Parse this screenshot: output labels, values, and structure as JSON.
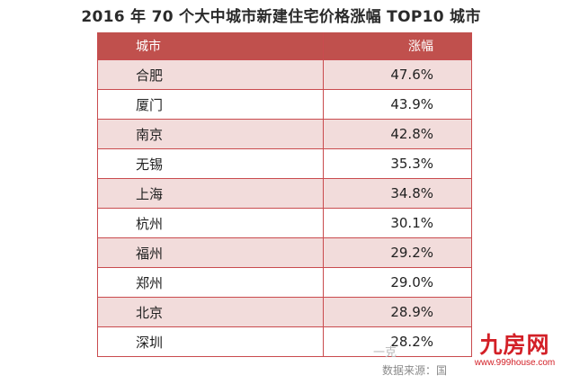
{
  "title": "2016 年 70 个大中城市新建住宅价格涨幅 TOP10 城市",
  "table": {
    "headers": [
      "城市",
      "涨幅"
    ],
    "rows": [
      [
        "合肥",
        "47.6%"
      ],
      [
        "厦门",
        "43.9%"
      ],
      [
        "南京",
        "42.8%"
      ],
      [
        "无锡",
        "35.3%"
      ],
      [
        "上海",
        "34.8%"
      ],
      [
        "杭州",
        "30.1%"
      ],
      [
        "福州",
        "29.2%"
      ],
      [
        "郑州",
        "29.0%"
      ],
      [
        "北京",
        "28.9%"
      ],
      [
        "深圳",
        "28.2%"
      ]
    ]
  },
  "chart_data": {
    "type": "table",
    "title": "2016 年 70 个大中城市新建住宅价格涨幅 TOP10 城市",
    "columns": [
      "城市",
      "涨幅"
    ],
    "categories": [
      "合肥",
      "厦门",
      "南京",
      "无锡",
      "上海",
      "杭州",
      "福州",
      "郑州",
      "北京",
      "深圳"
    ],
    "values": [
      "47.6%",
      "43.9%",
      "42.8%",
      "35.3%",
      "34.8%",
      "30.1%",
      "29.2%",
      "29.0%",
      "28.9%",
      "28.2%"
    ]
  },
  "source": "数据来源：国",
  "watermark": "一克",
  "logo": {
    "main": "九房网",
    "url": "www.999house.com"
  },
  "colors": {
    "header_bg": "#c0504d",
    "stripe_bg": "#f2dcdb",
    "border": "#c94b4e",
    "logo": "#d32027"
  }
}
